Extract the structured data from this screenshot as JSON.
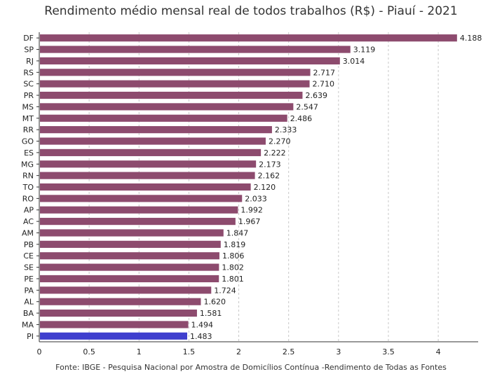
{
  "chart_data": {
    "type": "bar",
    "orientation": "horizontal",
    "title": "Rendimento médio mensal real de todos trabalhos (R$) - Piauí - 2021",
    "source": "Fonte: IBGE - Pesquisa Nacional por Amostra de Domicílios Contínua -Rendimento de Todas as Fontes",
    "xlim": [
      0,
      4.4
    ],
    "x_ticks": [
      "0",
      "0.5",
      "1",
      "1.5",
      "2",
      "2.5",
      "3",
      "3.5",
      "4"
    ],
    "x_tick_values": [
      0,
      0.5,
      1,
      1.5,
      2,
      2.5,
      3,
      3.5,
      4
    ],
    "grid": "vertical dashed",
    "bar_color": "#8d4b6e",
    "highlight_color": "#3f3fce",
    "highlight_category": "PI",
    "categories": [
      "DF",
      "SP",
      "RJ",
      "RS",
      "SC",
      "PR",
      "MS",
      "MT",
      "RR",
      "GO",
      "ES",
      "MG",
      "RN",
      "TO",
      "RO",
      "AP",
      "AC",
      "AM",
      "PB",
      "CE",
      "SE",
      "PE",
      "PA",
      "AL",
      "BA",
      "MA",
      "PI"
    ],
    "values": [
      4.188,
      3.119,
      3.014,
      2.717,
      2.71,
      2.639,
      2.547,
      2.486,
      2.333,
      2.27,
      2.222,
      2.173,
      2.162,
      2.12,
      2.033,
      1.992,
      1.967,
      1.847,
      1.819,
      1.806,
      1.802,
      1.801,
      1.724,
      1.62,
      1.581,
      1.494,
      1.483
    ],
    "value_labels": [
      "4.188",
      "3.119",
      "3.014",
      "2.717",
      "2.710",
      "2.639",
      "2.547",
      "2.486",
      "2.333",
      "2.270",
      "2.222",
      "2.173",
      "2.162",
      "2.120",
      "2.033",
      "1.992",
      "1.967",
      "1.847",
      "1.819",
      "1.806",
      "1.802",
      "1.801",
      "1.724",
      "1.620",
      "1.581",
      "1.494",
      "1.483"
    ]
  }
}
